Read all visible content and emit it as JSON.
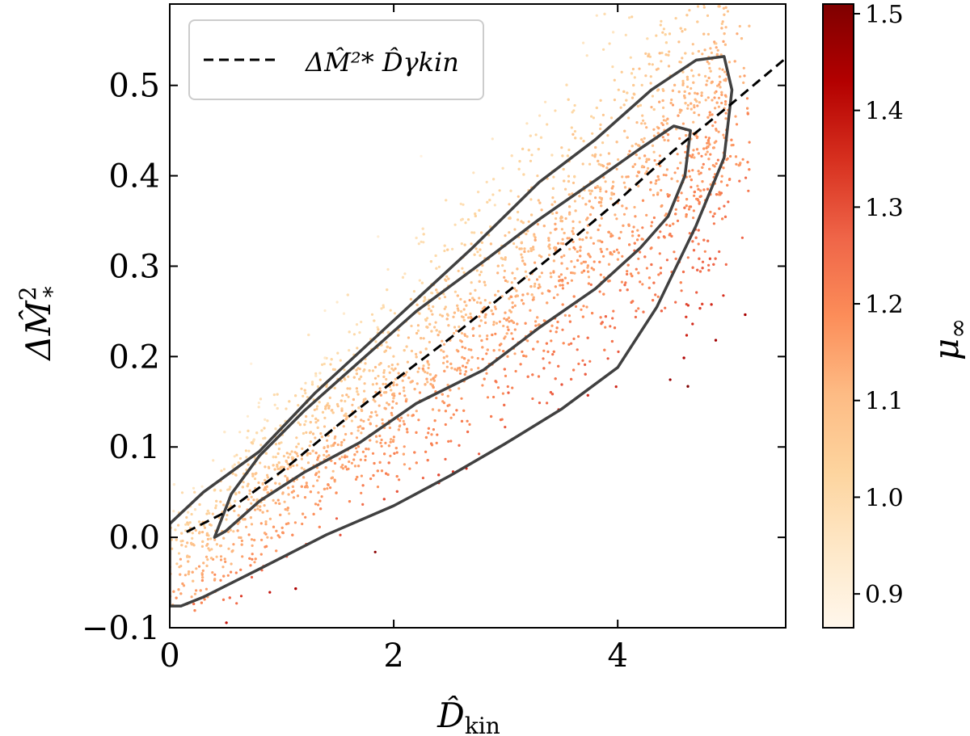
{
  "chart_data": {
    "type": "scatter",
    "xlabel": "D̂",
    "xlabel_sub": "kin",
    "ylabel": "ΔM̂",
    "ylabel_sup": "2",
    "ylabel_sub": "*",
    "xlim": [
      0,
      5.5
    ],
    "ylim": [
      -0.1,
      0.59
    ],
    "xticks": [
      0,
      2,
      4
    ],
    "xtick_labels": [
      "0",
      "2",
      "4"
    ],
    "yticks": [
      -0.1,
      0.0,
      0.1,
      0.2,
      0.3,
      0.4,
      0.5
    ],
    "ytick_labels": [
      "−0.1",
      "0.0",
      "0.1",
      "0.2",
      "0.3",
      "0.4",
      "0.5"
    ],
    "colorbar": {
      "label": "μ",
      "label_sub": "∞",
      "range": [
        0.865,
        1.51
      ],
      "ticks": [
        0.9,
        1.0,
        1.1,
        1.2,
        1.3,
        1.4,
        1.5
      ],
      "tick_labels": [
        "0.9",
        "1.0",
        "1.1",
        "1.2",
        "1.3",
        "1.4",
        "1.5"
      ],
      "colormap": "OrRd",
      "colors": [
        "#fff7ec",
        "#fee8c8",
        "#fdd49e",
        "#fdbb84",
        "#fc8d59",
        "#ef6548",
        "#d7301f",
        "#b30000",
        "#7f0000"
      ]
    },
    "legend": {
      "position": "top-left",
      "entries": [
        {
          "label": "ΔM̂²* D̂γkin",
          "style": "dashed",
          "color": "#000000"
        }
      ]
    },
    "fit_curve": {
      "name": "ΔM̂²* D̂γkin",
      "style": "dashed",
      "color": "#000000",
      "x": [
        0.15,
        0.5,
        1.0,
        1.5,
        2.0,
        2.5,
        3.0,
        3.5,
        4.0,
        4.5,
        5.0,
        5.5
      ],
      "y": [
        0.006,
        0.028,
        0.073,
        0.124,
        0.173,
        0.22,
        0.27,
        0.32,
        0.372,
        0.428,
        0.478,
        0.53
      ]
    },
    "contours": [
      {
        "level": "inner",
        "color": "#404040",
        "x": [
          0.4,
          0.55,
          0.8,
          1.2,
          1.7,
          2.2,
          2.8,
          3.3,
          3.8,
          4.2,
          4.5,
          4.65,
          4.6,
          4.45,
          4.2,
          3.8,
          3.3,
          2.8,
          2.2,
          1.7,
          1.2,
          0.8,
          0.5,
          0.4
        ],
        "y": [
          0.0,
          0.048,
          0.09,
          0.14,
          0.195,
          0.25,
          0.305,
          0.352,
          0.395,
          0.43,
          0.455,
          0.45,
          0.4,
          0.355,
          0.32,
          0.275,
          0.232,
          0.185,
          0.148,
          0.105,
          0.072,
          0.04,
          0.007,
          0.0
        ]
      },
      {
        "level": "outer",
        "color": "#404040",
        "x": [
          0.0,
          0.3,
          0.8,
          1.3,
          2.0,
          2.7,
          3.3,
          3.8,
          4.3,
          4.7,
          4.95,
          5.02,
          4.95,
          4.7,
          4.35,
          4.0,
          3.5,
          3.0,
          2.5,
          2.0,
          1.4,
          0.8,
          0.3,
          0.1,
          0.0
        ],
        "y": [
          0.015,
          0.05,
          0.095,
          0.16,
          0.24,
          0.32,
          0.393,
          0.44,
          0.495,
          0.528,
          0.532,
          0.495,
          0.42,
          0.345,
          0.255,
          0.188,
          0.142,
          0.104,
          0.068,
          0.035,
          0.003,
          -0.035,
          -0.066,
          -0.076,
          -0.076
        ]
      }
    ],
    "scatter_summary": {
      "n_points": 3500,
      "description": "points colored by μ∞, concentrated along the dashed fit between the contours"
    }
  }
}
